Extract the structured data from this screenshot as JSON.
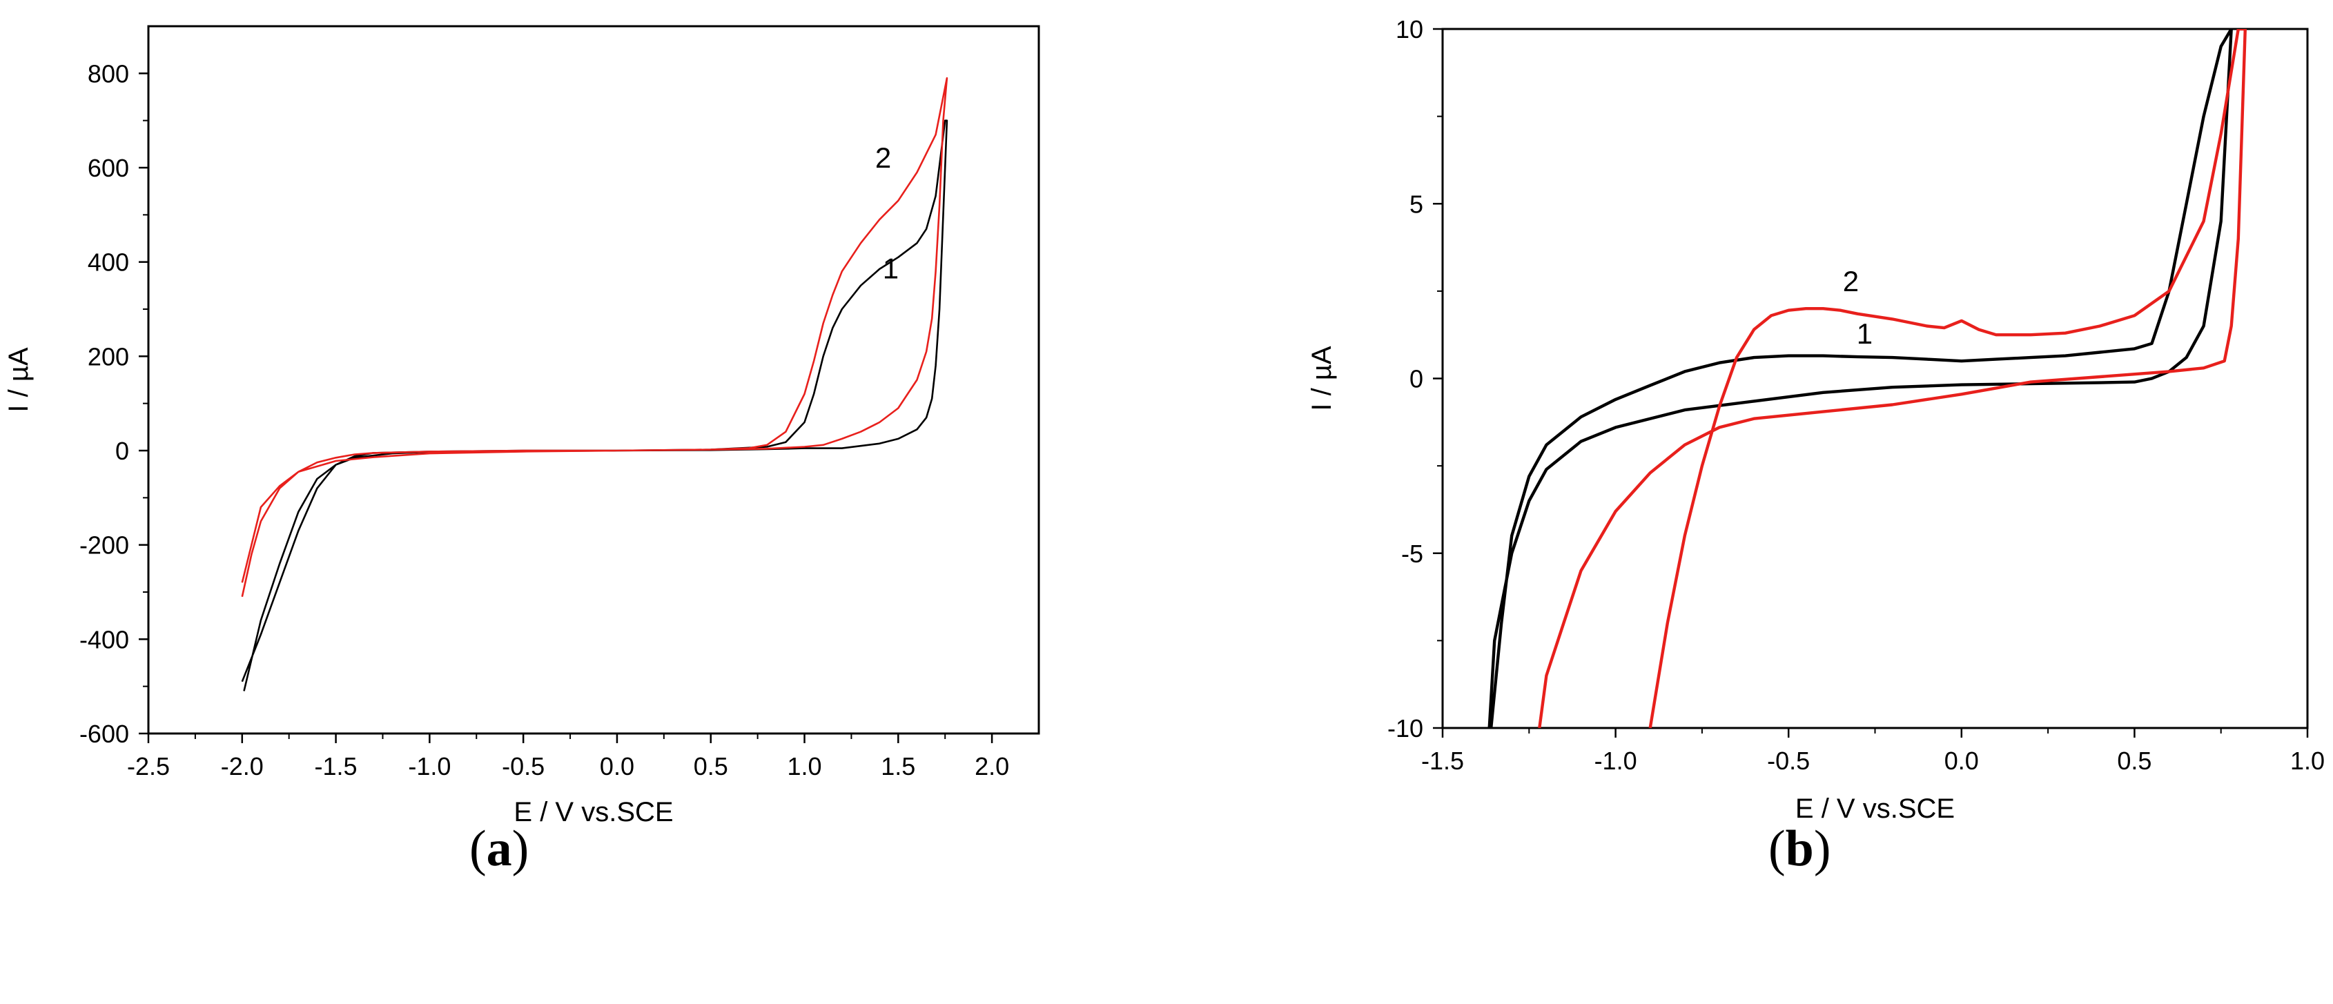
{
  "captions": {
    "a": "a",
    "b": "b"
  },
  "colors": {
    "series1": "#000000",
    "series2": "#e8201c"
  },
  "chart_data": [
    {
      "type": "line",
      "panel": "a",
      "xlabel": "E / V vs.SCE",
      "ylabel": "I / µA",
      "xlim": [
        -2.5,
        2.25
      ],
      "ylim": [
        -600,
        900
      ],
      "xticks": [
        -2.5,
        -2.0,
        -1.5,
        -1.0,
        -0.5,
        0.0,
        0.5,
        1.0,
        1.5,
        2.0
      ],
      "xtick_labels": [
        "-2.5",
        "-2.0",
        "-1.5",
        "-1.0",
        "-0.5",
        "0.0",
        "0.5",
        "1.0",
        "1.5",
        "2.0"
      ],
      "yticks": [
        -600,
        -400,
        -200,
        0,
        200,
        400,
        600,
        800
      ],
      "ytick_labels": [
        "-600",
        "-400",
        "-200",
        "0",
        "200",
        "400",
        "600",
        "800"
      ],
      "grid": false,
      "annotations": [
        {
          "text": "2",
          "x": 1.42,
          "y": 600
        },
        {
          "text": "1",
          "x": 1.46,
          "y": 365
        }
      ],
      "series": [
        {
          "color": "#000000",
          "x": [
            -2.0,
            -1.9,
            -1.8,
            -1.7,
            -1.6,
            -1.5,
            -1.4,
            -1.3,
            -1.0,
            -0.5,
            0.0,
            0.5,
            0.8,
            0.9,
            1.0,
            1.05,
            1.1,
            1.15,
            1.2,
            1.3,
            1.4,
            1.5,
            1.6,
            1.65,
            1.7,
            1.75,
            1.76,
            1.74,
            1.72,
            1.7,
            1.68,
            1.65,
            1.6,
            1.5,
            1.4,
            1.3,
            1.2,
            1.1,
            1.0,
            0.8,
            0.5,
            0.0,
            -0.5,
            -1.0,
            -1.2,
            -1.4,
            -1.5,
            -1.6,
            -1.7,
            -1.8,
            -1.9,
            -1.99
          ],
          "y": [
            -490,
            -390,
            -280,
            -170,
            -80,
            -30,
            -12,
            -5,
            -2,
            0,
            0,
            2,
            8,
            18,
            60,
            120,
            200,
            260,
            300,
            350,
            385,
            410,
            440,
            470,
            540,
            700,
            700,
            500,
            300,
            180,
            110,
            70,
            45,
            25,
            15,
            10,
            5,
            5,
            5,
            3,
            1,
            0,
            -1,
            -3,
            -6,
            -15,
            -30,
            -60,
            -130,
            -240,
            -360,
            -510
          ]
        },
        {
          "color": "#e8201c",
          "x": [
            -2.0,
            -1.95,
            -1.9,
            -1.8,
            -1.7,
            -1.6,
            -1.5,
            -1.4,
            -1.3,
            -1.0,
            -0.5,
            0.0,
            0.5,
            0.7,
            0.8,
            0.9,
            1.0,
            1.05,
            1.1,
            1.15,
            1.2,
            1.3,
            1.4,
            1.5,
            1.6,
            1.7,
            1.76,
            1.74,
            1.72,
            1.7,
            1.68,
            1.65,
            1.6,
            1.5,
            1.4,
            1.3,
            1.2,
            1.1,
            1.0,
            0.8,
            0.5,
            0.0,
            -0.5,
            -1.0,
            -1.3,
            -1.5,
            -1.7,
            -1.8,
            -1.9,
            -2.0
          ],
          "y": [
            -310,
            -220,
            -150,
            -80,
            -45,
            -25,
            -15,
            -8,
            -5,
            -2,
            0,
            0,
            2,
            5,
            12,
            40,
            120,
            190,
            270,
            330,
            380,
            440,
            490,
            530,
            590,
            670,
            790,
            700,
            520,
            380,
            280,
            210,
            150,
            90,
            60,
            40,
            25,
            12,
            8,
            4,
            2,
            0,
            -2,
            -6,
            -14,
            -22,
            -45,
            -75,
            -120,
            -280
          ]
        }
      ]
    },
    {
      "type": "line",
      "panel": "b",
      "xlabel": "E / V vs.SCE",
      "ylabel": "I / µA",
      "xlim": [
        -1.5,
        1.0
      ],
      "ylim": [
        -10,
        10
      ],
      "xticks": [
        -1.5,
        -1.0,
        -0.5,
        0.0,
        0.5,
        1.0
      ],
      "xtick_labels": [
        "-1.5",
        "-1.0",
        "-0.5",
        "0.0",
        "0.5",
        "1.0"
      ],
      "yticks": [
        -10,
        -5,
        0,
        5,
        10
      ],
      "ytick_labels": [
        "-10",
        "-5",
        "0",
        "5",
        "10"
      ],
      "grid": false,
      "annotations": [
        {
          "text": "2",
          "x": -0.32,
          "y": 2.5
        },
        {
          "text": "1",
          "x": -0.28,
          "y": 1.0
        }
      ],
      "series": [
        {
          "color": "#000000",
          "x": [
            -1.36,
            -1.33,
            -1.3,
            -1.25,
            -1.2,
            -1.1,
            -1.0,
            -0.9,
            -0.8,
            -0.7,
            -0.6,
            -0.5,
            -0.4,
            -0.3,
            -0.2,
            -0.1,
            0.0,
            0.1,
            0.2,
            0.3,
            0.4,
            0.5,
            0.55,
            0.6,
            0.65,
            0.7,
            0.75,
            0.78,
            0.75,
            0.7,
            0.65,
            0.6,
            0.55,
            0.5,
            0.4,
            0.2,
            0.0,
            -0.2,
            -0.4,
            -0.6,
            -0.8,
            -1.0,
            -1.1,
            -1.2,
            -1.25,
            -1.3,
            -1.35,
            -1.365
          ],
          "y": [
            -10,
            -7,
            -4.5,
            -2.8,
            -1.9,
            -1.1,
            -0.6,
            -0.2,
            0.2,
            0.45,
            0.6,
            0.65,
            0.65,
            0.62,
            0.6,
            0.55,
            0.5,
            0.55,
            0.6,
            0.65,
            0.75,
            0.85,
            1.0,
            2.5,
            5.0,
            7.5,
            9.5,
            10.0,
            4.5,
            1.5,
            0.6,
            0.2,
            0.0,
            -0.1,
            -0.12,
            -0.15,
            -0.18,
            -0.25,
            -0.4,
            -0.65,
            -0.9,
            -1.4,
            -1.8,
            -2.6,
            -3.5,
            -5.0,
            -7.5,
            -10
          ]
        },
        {
          "color": "#e8201c",
          "x": [
            -0.9,
            -0.85,
            -0.8,
            -0.75,
            -0.7,
            -0.65,
            -0.6,
            -0.55,
            -0.5,
            -0.45,
            -0.4,
            -0.35,
            -0.3,
            -0.2,
            -0.1,
            -0.05,
            0.0,
            0.05,
            0.1,
            0.2,
            0.3,
            0.4,
            0.5,
            0.6,
            0.7,
            0.75,
            0.8,
            0.82,
            0.8,
            0.78,
            0.76,
            0.7,
            0.6,
            0.4,
            0.2,
            0.0,
            -0.2,
            -0.4,
            -0.6,
            -0.7,
            -0.8,
            -0.9,
            -1.0,
            -1.1,
            -1.15,
            -1.2,
            -1.22
          ],
          "y": [
            -10,
            -7,
            -4.5,
            -2.5,
            -0.8,
            0.6,
            1.4,
            1.8,
            1.95,
            2.0,
            2.0,
            1.95,
            1.85,
            1.7,
            1.5,
            1.45,
            1.65,
            1.4,
            1.25,
            1.25,
            1.3,
            1.5,
            1.8,
            2.5,
            4.5,
            7.0,
            10.0,
            10.0,
            4.0,
            1.5,
            0.5,
            0.3,
            0.2,
            0.05,
            -0.1,
            -0.45,
            -0.75,
            -0.95,
            -1.15,
            -1.4,
            -1.9,
            -2.7,
            -3.8,
            -5.5,
            -7.0,
            -8.5,
            -10
          ]
        }
      ]
    }
  ]
}
